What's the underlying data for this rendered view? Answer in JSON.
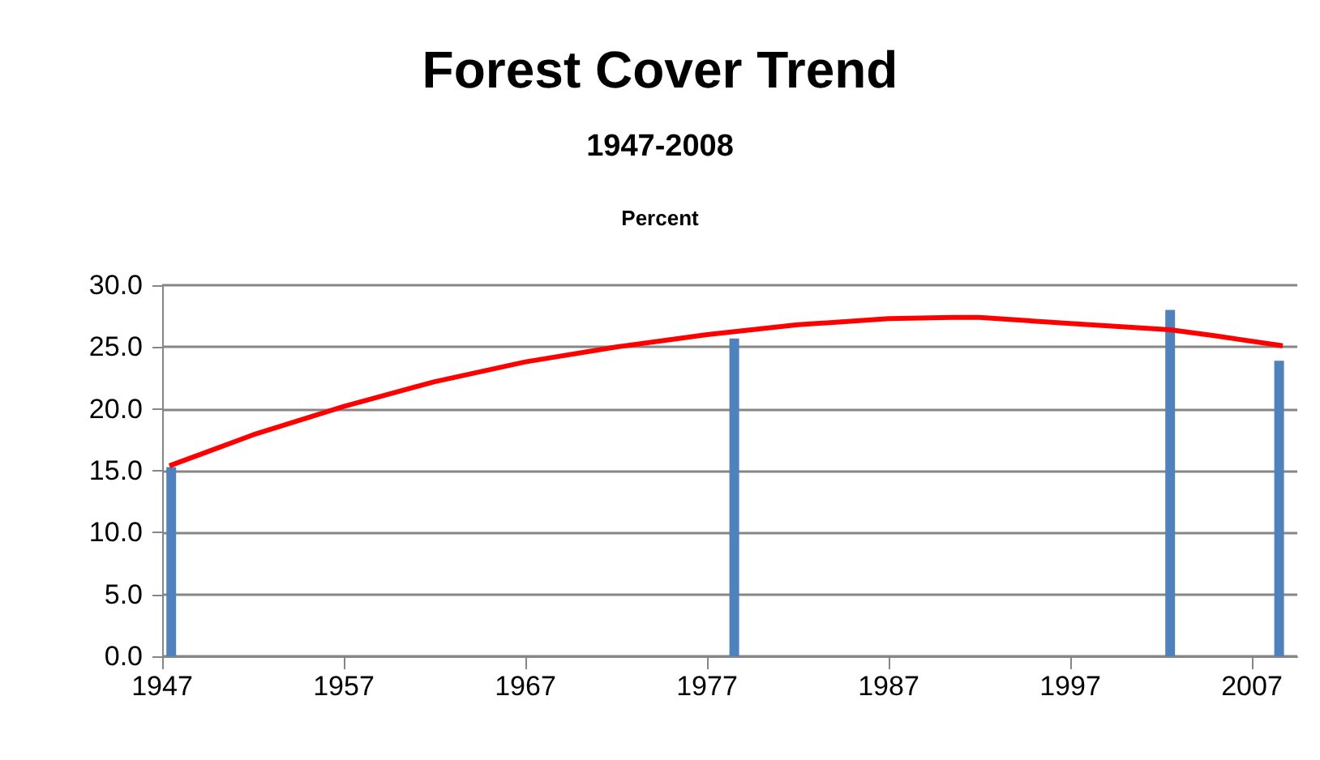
{
  "chart_data": {
    "type": "bar",
    "title": "Forest Cover Trend",
    "subtitle": "1947-2008",
    "ylabel": "Percent",
    "series": [
      {
        "color": "#4f81bd",
        "x": [
          1947.5,
          1978.5,
          2002.5,
          2008.5
        ],
        "values": [
          15.3,
          25.7,
          28.0,
          23.9
        ]
      },
      {
        "type": "line",
        "color": "#ff0000",
        "x": [
          1947.4,
          1952,
          1957,
          1962,
          1967,
          1972,
          1977,
          1982,
          1987,
          1990.5,
          1992,
          1997,
          2002.5,
          2005,
          2008.7
        ],
        "values": [
          15.4,
          17.9,
          20.2,
          22.2,
          23.8,
          25.0,
          26.0,
          26.8,
          27.3,
          27.4,
          27.4,
          26.9,
          26.4,
          25.9,
          25.1
        ],
        "marker": "none"
      }
    ],
    "xlim": [
      1947,
      2009.5
    ],
    "xticks": [
      1947,
      1957,
      1967,
      1977,
      1987,
      1997,
      2007
    ],
    "ylim": [
      0,
      30
    ],
    "yticks": [
      {
        "value": 0,
        "label": "0.0"
      },
      {
        "value": 5,
        "label": "5.0"
      },
      {
        "value": 10,
        "label": "10.0"
      },
      {
        "value": 15,
        "label": "15.0"
      },
      {
        "value": 20,
        "label": "20.0"
      },
      {
        "value": 25,
        "label": "25.0"
      },
      {
        "value": 30,
        "label": "30.0"
      }
    ],
    "grid": "y"
  }
}
